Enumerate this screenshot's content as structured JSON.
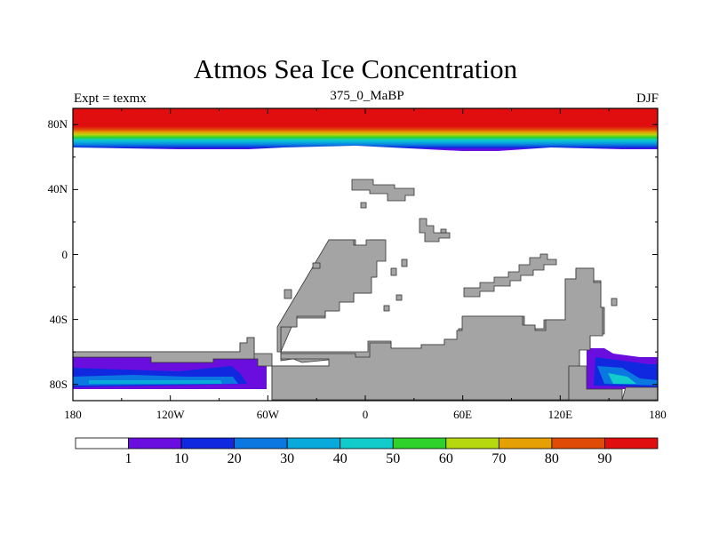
{
  "title": "Atmos Sea Ice Concentration",
  "subtitle_left": "Expt = texmx",
  "subtitle_center": "375_0_MaBP",
  "subtitle_right": "DJF",
  "lat_labels": [
    "80N",
    "40N",
    "0",
    "40S",
    "80S"
  ],
  "lat_values": [
    80,
    40,
    0,
    -40,
    -80
  ],
  "lon_labels": [
    "180",
    "120W",
    "60W",
    "0",
    "60E",
    "120E",
    "180"
  ],
  "lon_values": [
    -180,
    -120,
    -60,
    0,
    60,
    120,
    180
  ],
  "colorbar": {
    "labels": [
      "1",
      "10",
      "20",
      "30",
      "40",
      "50",
      "60",
      "70",
      "80",
      "90"
    ],
    "colors": [
      "#ffffff",
      "#6a0ee0",
      "#1028e0",
      "#0a78e0",
      "#08aadc",
      "#12cccc",
      "#2fd22a",
      "#b6d80e",
      "#e4a004",
      "#e04c08",
      "#e00e0e"
    ]
  },
  "colors": {
    "land": "#a4a4a4",
    "background": "#ffffff"
  }
}
